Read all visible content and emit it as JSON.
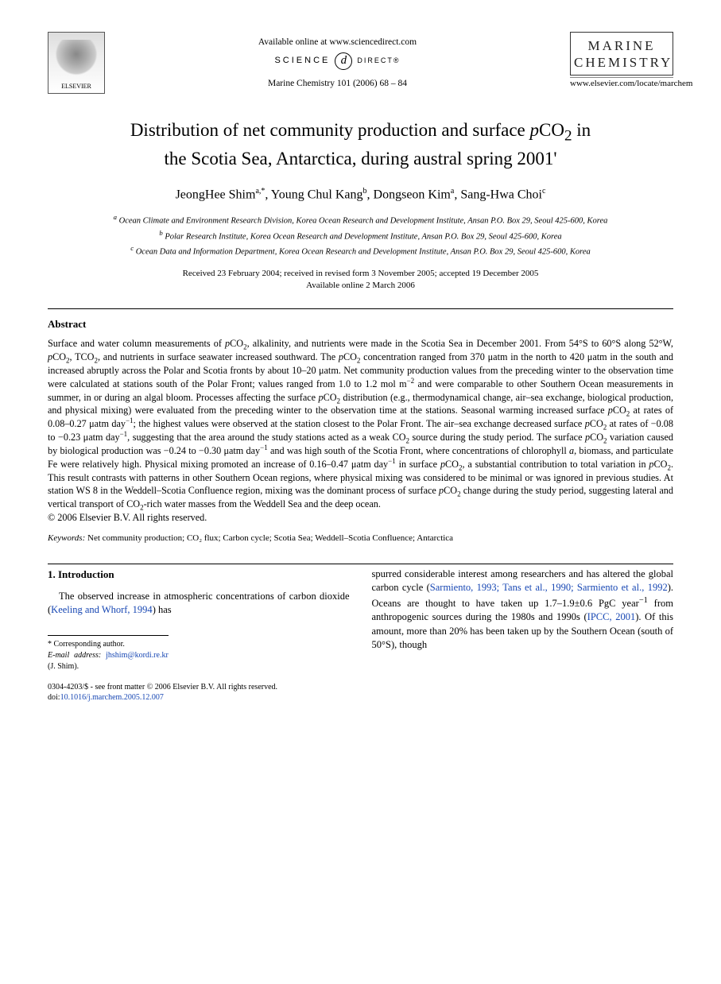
{
  "header": {
    "available_online": "Available online at www.sciencedirect.com",
    "scidirect_left": "SCIENCE",
    "scidirect_badge": "d",
    "scidirect_right": "DIRECT®",
    "citation": "Marine Chemistry 101 (2006) 68 – 84",
    "publisher_name": "ELSEVIER",
    "journal_name_line1": "MARINE",
    "journal_name_line2": "CHEMISTRY",
    "locator_url": "www.elsevier.com/locate/marchem"
  },
  "title": {
    "line1_pre": "Distribution of net community production and surface ",
    "pco2": "p",
    "co2": "CO",
    "sub2": "2",
    "line1_post": " in",
    "line2": "the Scotia Sea, Antarctica, during austral spring 2001'"
  },
  "authors": {
    "a1_name": "JeongHee Shim",
    "a1_sup": "a,*",
    "a2_name": "Young Chul Kang",
    "a2_sup": "b",
    "a3_name": "Dongseon Kim",
    "a3_sup": "a",
    "a4_name": "Sang-Hwa Choi",
    "a4_sup": "c"
  },
  "affiliations": {
    "a": "Ocean Climate and Environment Research Division, Korea Ocean Research and Development Institute, Ansan P.O. Box 29, Seoul 425-600, Korea",
    "b": "Polar Research Institute, Korea Ocean Research and Development Institute, Ansan P.O. Box 29, Seoul 425-600, Korea",
    "c": "Ocean Data and Information Department, Korea Ocean Research and Development Institute, Ansan P.O. Box 29, Seoul 425-600, Korea"
  },
  "dates": {
    "line1": "Received 23 February 2004; received in revised form 3 November 2005; accepted 19 December 2005",
    "line2": "Available online 2 March 2006"
  },
  "abstract": {
    "heading": "Abstract",
    "body_html": "Surface and water column measurements of <i>p</i>CO<sub>2</sub>, alkalinity, and nutrients were made in the Scotia Sea in December 2001. From 54°S to 60°S along 52°W, <i>p</i>CO<sub>2</sub>, TCO<sub>2</sub>, and nutrients in surface seawater increased southward. The <i>p</i>CO<sub>2</sub> concentration ranged from 370 μatm in the north to 420 μatm in the south and increased abruptly across the Polar and Scotia fronts by about 10–20 μatm. Net community production values from the preceding winter to the observation time were calculated at stations south of the Polar Front; values ranged from 1.0 to 1.2 mol m<sup>−2</sup> and were comparable to other Southern Ocean measurements in summer, in or during an algal bloom. Processes affecting the surface <i>p</i>CO<sub>2</sub> distribution (e.g., thermodynamical change, air–sea exchange, biological production, and physical mixing) were evaluated from the preceding winter to the observation time at the stations. Seasonal warming increased surface <i>p</i>CO<sub>2</sub> at rates of 0.08–0.27 μatm day<sup>−1</sup>; the highest values were observed at the station closest to the Polar Front. The air–sea exchange decreased surface <i>p</i>CO<sub>2</sub> at rates of −0.08 to −0.23 μatm day<sup>−1</sup>, suggesting that the area around the study stations acted as a weak CO<sub>2</sub> source during the study period. The surface <i>p</i>CO<sub>2</sub> variation caused by biological production was −0.24 to −0.30 μatm day<sup>−1</sup> and was high south of the Scotia Front, where concentrations of chlorophyll <i>a</i>, biomass, and particulate Fe were relatively high. Physical mixing promoted an increase of 0.16–0.47 μatm day<sup>−1</sup> in surface <i>p</i>CO<sub>2</sub>, a substantial contribution to total variation in <i>p</i>CO<sub>2</sub>. This result contrasts with patterns in other Southern Ocean regions, where physical mixing was considered to be minimal or was ignored in previous studies. At station WS 8 in the Weddell–Scotia Confluence region, mixing was the dominant process of surface <i>p</i>CO<sub>2</sub> change during the study period, suggesting lateral and vertical transport of CO<sub>2</sub>-rich water masses from the Weddell Sea and the deep ocean.",
    "copyright": "© 2006 Elsevier B.V. All rights reserved."
  },
  "keywords": {
    "label": "Keywords:",
    "list": "Net community production; CO₂ flux; Carbon cycle; Scotia Sea; Weddell–Scotia Confluence; Antarctica"
  },
  "introduction": {
    "heading": "1. Introduction",
    "left_html": "The observed increase in atmospheric concentrations of carbon dioxide (<span class=\"ref-link\">Keeling and Whorf, 1994</span>) has",
    "right_html": "spurred considerable interest among researchers and has altered the global carbon cycle (<span class=\"ref-link\">Sarmiento, 1993; Tans et al., 1990; Sarmiento et al., 1992</span>). Oceans are thought to have taken up 1.7–1.9±0.6 PgC year<sup>−1</sup> from anthropogenic sources during the 1980s and 1990s (<span class=\"ref-link\">IPCC, 2001</span>). Of this amount, more than 20% has been taken up by the Southern Ocean (south of 50°S), though"
  },
  "corresponding": {
    "star_label": "* Corresponding author.",
    "email_label": "E-mail address:",
    "email": "jhshim@kordi.re.kr",
    "email_suffix": "(J. Shim)."
  },
  "footer": {
    "line1": "0304-4203/$ - see front matter © 2006 Elsevier B.V. All rights reserved.",
    "doi_label": "doi:",
    "doi": "10.1016/j.marchem.2005.12.007"
  }
}
